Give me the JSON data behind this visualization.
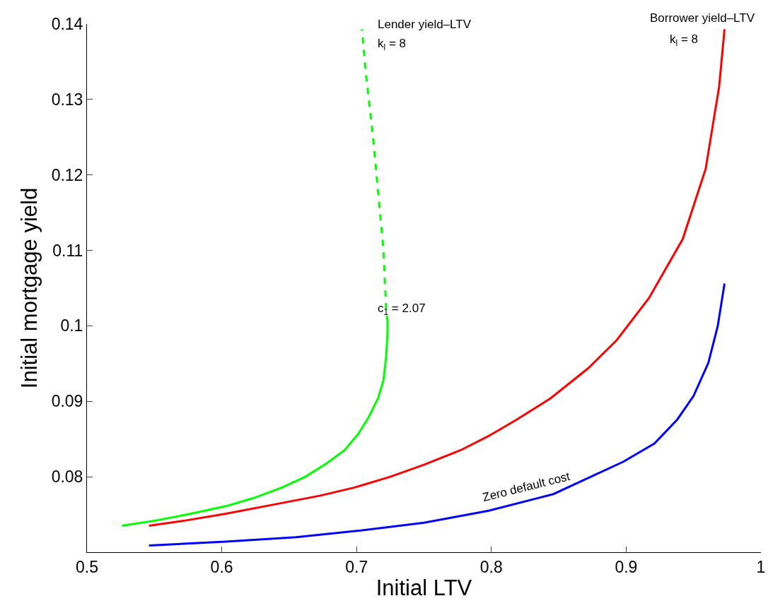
{
  "chart_data": {
    "type": "line",
    "xlabel": "Initial LTV",
    "ylabel": "Initial mortgage yield",
    "xlim": [
      0.5,
      1
    ],
    "xticks": [
      0.5,
      0.6,
      0.7,
      0.8,
      0.9,
      1
    ],
    "ylim": [
      0.07,
      0.14
    ],
    "yticks": [
      0.08,
      0.09,
      0.1,
      0.11,
      0.12,
      0.13,
      0.14
    ],
    "grid": false,
    "marker": "none",
    "series": [
      {
        "color": "#00ff00",
        "line_style": "solid",
        "x": [
          0.526,
          0.551,
          0.577,
          0.603,
          0.624,
          0.645,
          0.662,
          0.678,
          0.691,
          0.701,
          0.709,
          0.716,
          0.72,
          0.722,
          0.723,
          0.723
        ],
        "values": [
          0.0735,
          0.0742,
          0.0751,
          0.0761,
          0.0772,
          0.0786,
          0.08,
          0.0818,
          0.0835,
          0.0856,
          0.0879,
          0.0904,
          0.0928,
          0.096,
          0.0991,
          0.1005
        ]
      },
      {
        "color": "#00ff00",
        "line_style": "dashed",
        "x": [
          0.723,
          0.722,
          0.72,
          0.716,
          0.712,
          0.707,
          0.704
        ],
        "values": [
          0.1005,
          0.1019,
          0.11,
          0.1177,
          0.1255,
          0.1333,
          0.1393
        ]
      },
      {
        "color": "#ff0000",
        "line_style": "solid",
        "x": [
          0.546,
          0.573,
          0.603,
          0.641,
          0.673,
          0.699,
          0.725,
          0.75,
          0.777,
          0.798,
          0.819,
          0.844,
          0.872,
          0.893,
          0.917,
          0.942,
          0.959,
          0.969,
          0.973
        ],
        "values": [
          0.0735,
          0.0742,
          0.0751,
          0.0764,
          0.0775,
          0.0786,
          0.08,
          0.0816,
          0.0835,
          0.0854,
          0.0876,
          0.0904,
          0.0944,
          0.0981,
          0.1037,
          0.1115,
          0.1208,
          0.1317,
          0.1393
        ]
      },
      {
        "color": "#0000ff",
        "line_style": "solid",
        "x": [
          0.546,
          0.603,
          0.655,
          0.699,
          0.75,
          0.798,
          0.846,
          0.898,
          0.921,
          0.938,
          0.95,
          0.961,
          0.968,
          0.973
        ],
        "values": [
          0.0709,
          0.0714,
          0.072,
          0.0728,
          0.0739,
          0.0755,
          0.0777,
          0.082,
          0.0844,
          0.0876,
          0.0907,
          0.0951,
          0.1,
          0.1056
        ]
      }
    ],
    "annotations": [
      "Lender yield–LTV",
      "k$_{l}$ = 8",
      "Borrower yield–LTV",
      "k$_{l}$ = 8",
      "c$_{1}$ = 2.07",
      "Zero default cost"
    ]
  }
}
